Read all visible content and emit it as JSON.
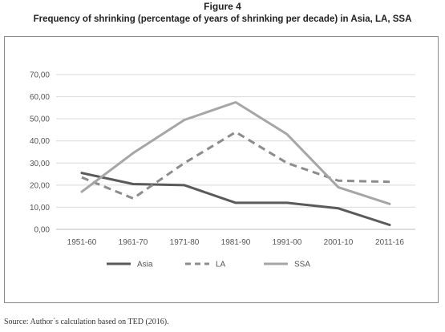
{
  "figure": {
    "label": "Figure 4",
    "title": "Frequency of shrinking (percentage of years of shrinking per decade) in Asia, LA, SSA"
  },
  "source": "Source: Author´s calculation based on TED (2016).",
  "chart_data": {
    "type": "line",
    "title": "Frequency of shrinking (percentage of years of shrinking per decade) in Asia, LA, SSA",
    "xlabel": "",
    "ylabel": "",
    "categories": [
      "1951-60",
      "1961-70",
      "1971-80",
      "1981-90",
      "1991-00",
      "2001-10",
      "2011-16"
    ],
    "ylim": [
      0,
      70
    ],
    "yticks": [
      "0,00",
      "10,00",
      "20,00",
      "30,00",
      "40,00",
      "50,00",
      "60,00",
      "70,00"
    ],
    "grid": true,
    "legend_position": "bottom",
    "series": [
      {
        "name": "Asia",
        "values": [
          25.5,
          20.5,
          20.0,
          12.0,
          12.0,
          9.5,
          2.0
        ],
        "color": "#5a5a5a",
        "dash": "solid"
      },
      {
        "name": "LA",
        "values": [
          23.5,
          14.0,
          30.0,
          44.0,
          30.0,
          22.0,
          21.5
        ],
        "color": "#8c8c8c",
        "dash": "dashed"
      },
      {
        "name": "SSA",
        "values": [
          17.0,
          34.5,
          49.5,
          57.5,
          43.0,
          19.0,
          11.5
        ],
        "color": "#a6a6a6",
        "dash": "solid"
      }
    ]
  }
}
